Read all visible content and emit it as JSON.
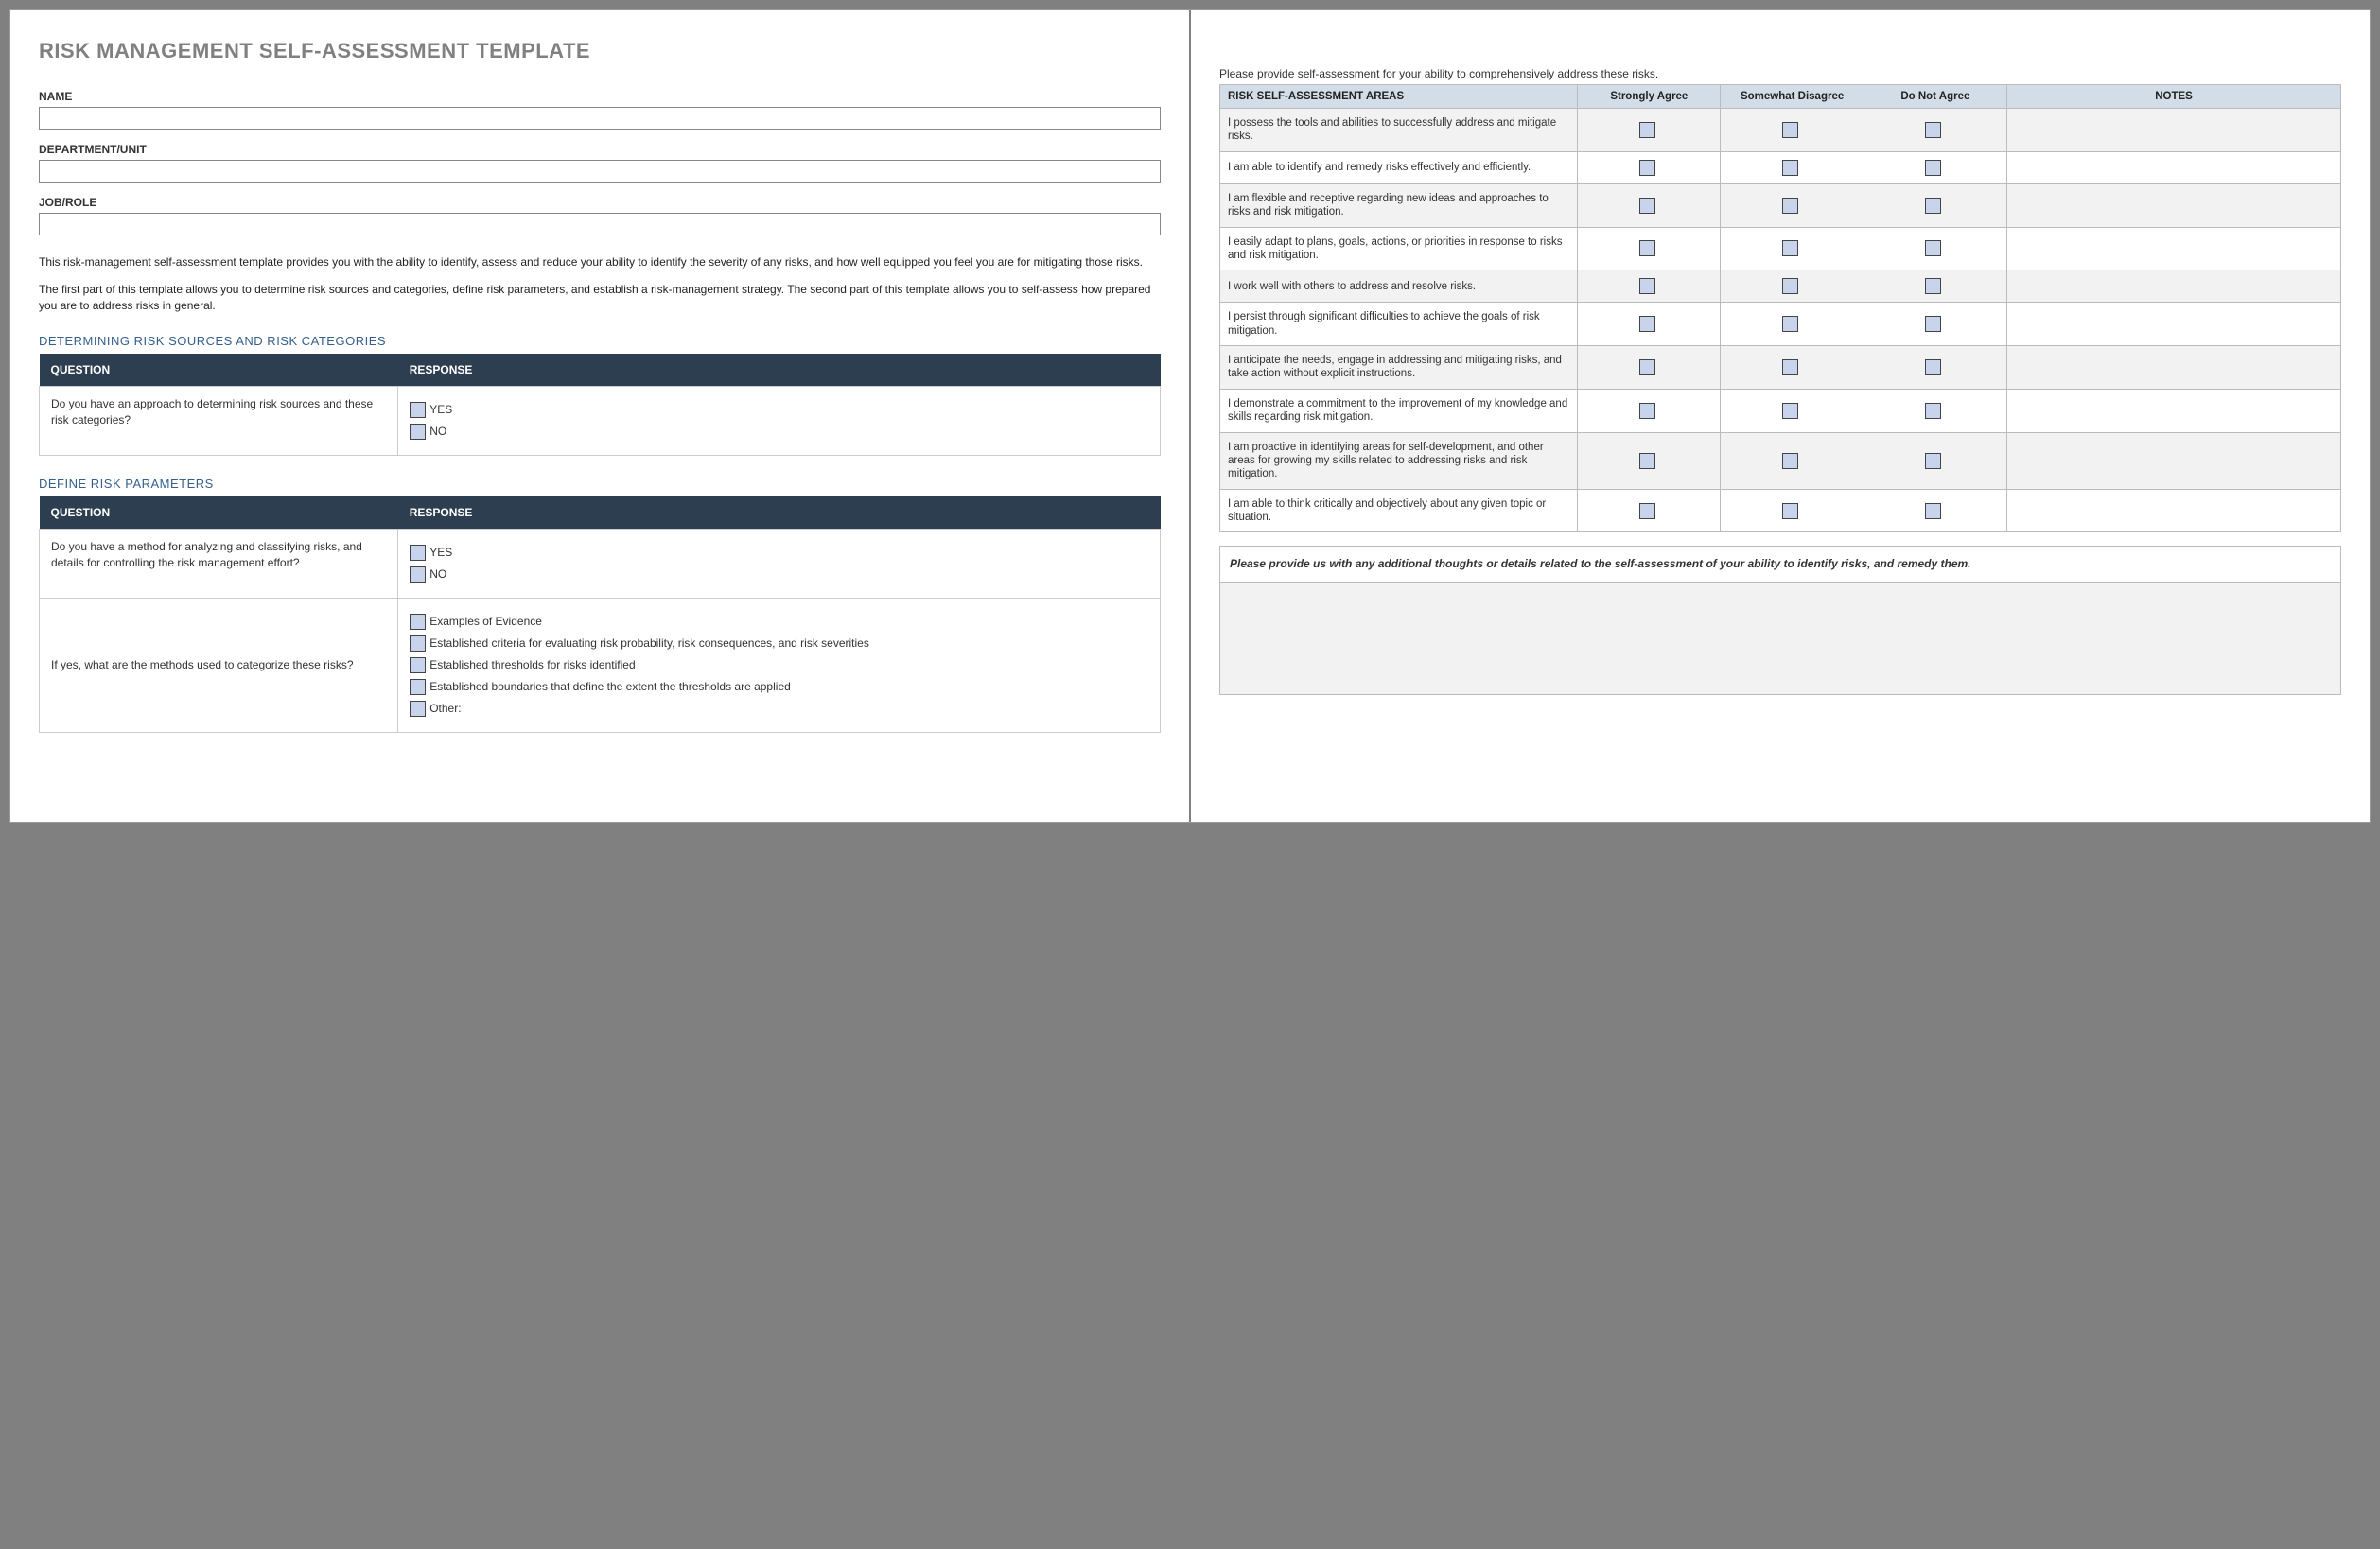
{
  "title": "RISK MANAGEMENT SELF-ASSESSMENT TEMPLATE",
  "fields": {
    "name": {
      "label": "NAME",
      "value": ""
    },
    "dept": {
      "label": "DEPARTMENT/UNIT",
      "value": ""
    },
    "job": {
      "label": "JOB/ROLE",
      "value": ""
    }
  },
  "intro": {
    "p1": "This risk-management self-assessment template provides you with the ability to identify, assess and reduce your ability to identify the severity of any risks, and how well equipped you feel you are for mitigating those risks.",
    "p2": "The first part of this template allows you to determine risk sources and categories, define risk parameters, and establish a risk-management strategy. The second part of this template allows you to self-assess how prepared you are to address risks in general."
  },
  "section1": {
    "heading": "DETERMINING RISK SOURCES AND RISK CATEGORIES",
    "th_question": "QUESTION",
    "th_response": "RESPONSE",
    "q1": "Do you have an approach to determining risk sources and these risk categories?",
    "yes": "YES",
    "no": "NO"
  },
  "section2": {
    "heading": "DEFINE RISK PARAMETERS",
    "th_question": "QUESTION",
    "th_response": "RESPONSE",
    "q1": "Do you have a method for analyzing and classifying risks, and details for controlling the risk management effort?",
    "yes": "YES",
    "no": "NO",
    "q2": "If yes, what are the methods used to categorize these risks?",
    "opt1": "Examples of Evidence",
    "opt2": "Established criteria for evaluating risk probability, risk consequences, and risk severities",
    "opt3": "Established thresholds for risks identified",
    "opt4": "Established boundaries that define the extent the thresholds are applied",
    "opt5": "Other:"
  },
  "right": {
    "lead": "Please provide self-assessment for your ability to comprehensively address these risks.",
    "th_area": "RISK SELF-ASSESSMENT AREAS",
    "th_sa": "Strongly Agree",
    "th_sd": "Somewhat Disagree",
    "th_dna": "Do Not Agree",
    "th_notes": "NOTES",
    "rows": [
      "I possess the tools and abilities to successfully address and mitigate risks.",
      "I am able to identify and remedy risks effectively and efficiently.",
      "I am flexible and receptive regarding new ideas and approaches to risks and risk mitigation.",
      "I easily adapt to plans, goals, actions, or priorities in response to risks and risk mitigation.",
      "I work well with others to address and resolve risks.",
      "I persist through significant difficulties to achieve the goals of risk mitigation.",
      "I anticipate the needs, engage in addressing and mitigating risks, and take action without explicit instructions.",
      "I demonstrate a commitment to the improvement of my knowledge and skills regarding risk mitigation.",
      "I am proactive in identifying areas for self-development, and other areas for growing my skills related to addressing risks and risk mitigation.",
      "I am able to think critically and objectively about any given topic or situation."
    ],
    "instruction": "Please provide us with any additional thoughts or details related to the self-assessment of your ability to identify risks, and remedy them."
  },
  "colors": {
    "page_bg": "#808080",
    "header_bg": "#2c3e50",
    "sa_header_bg": "#d2dde7",
    "checkbox_bg": "#c8d4ec",
    "section_head": "#355f8c"
  }
}
